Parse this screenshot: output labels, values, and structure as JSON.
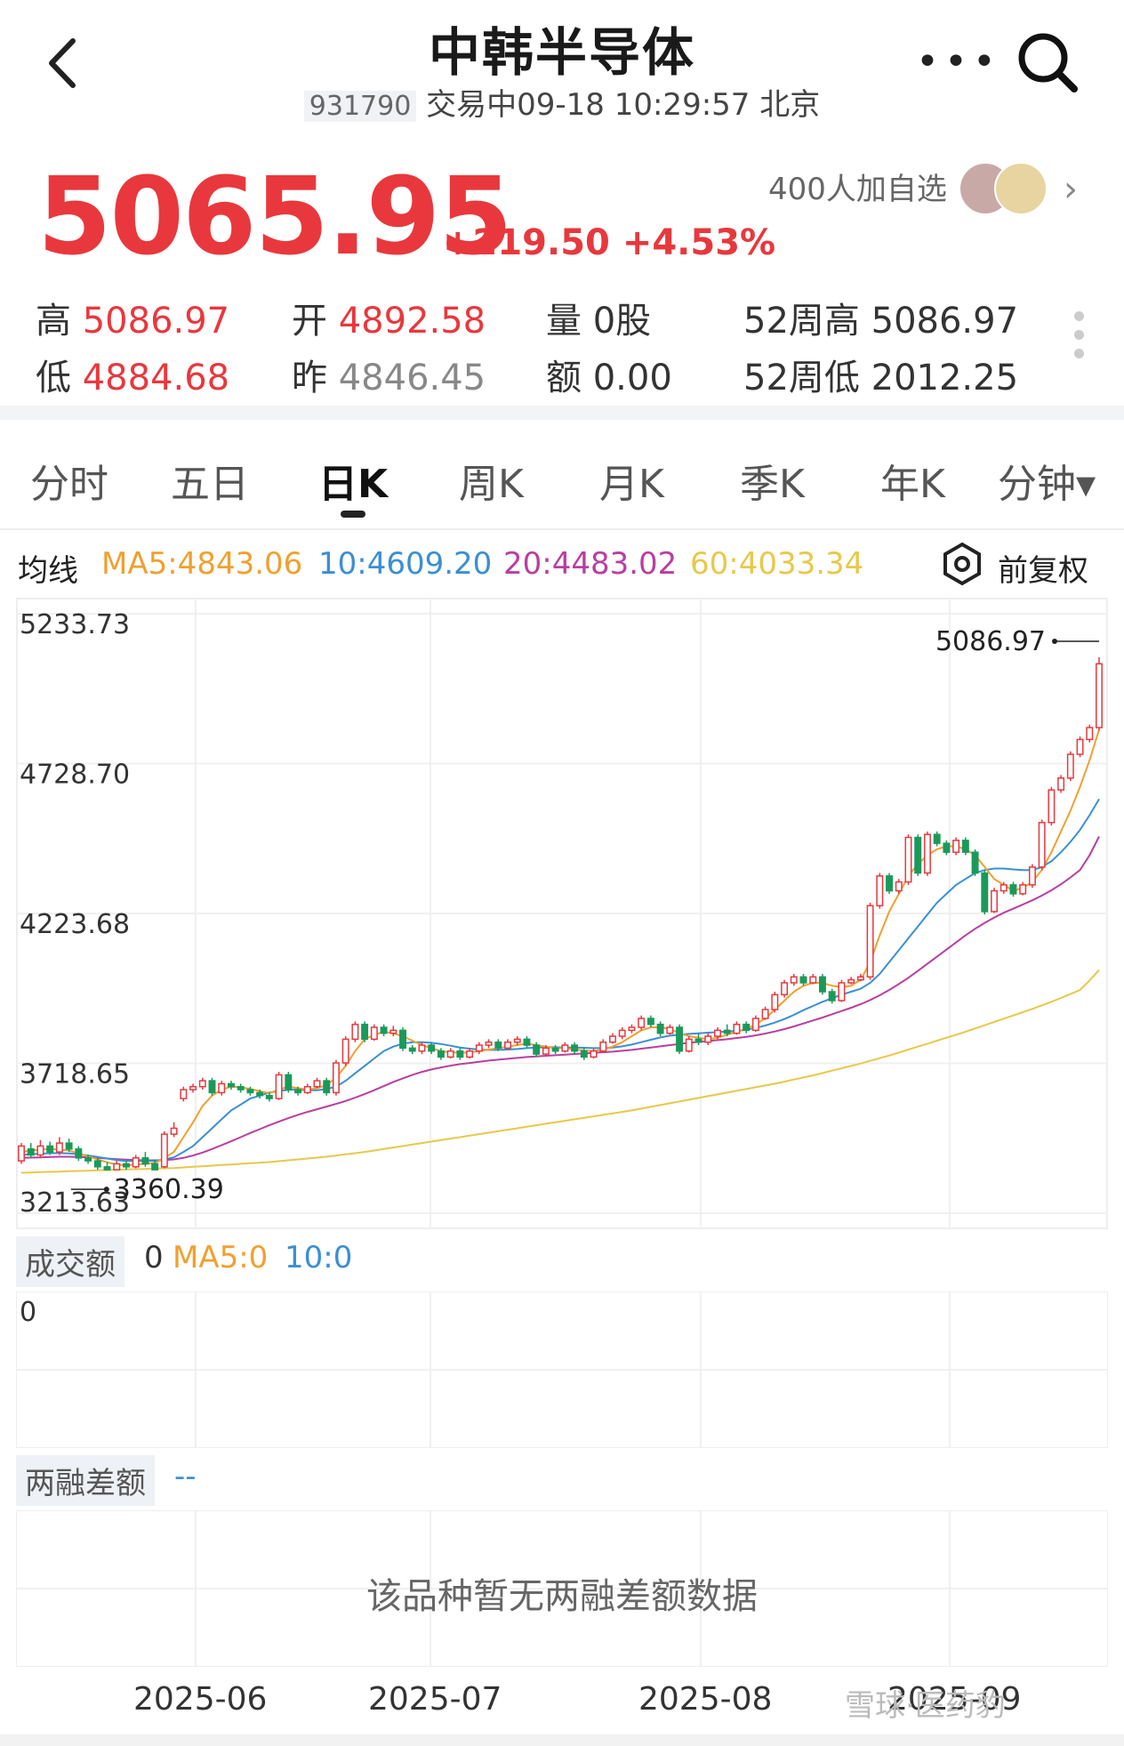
{
  "header": {
    "title": "中韩半导体",
    "code": "931790",
    "status": "交易中09-18 10:29:57 北京"
  },
  "quote": {
    "price": "5065.95",
    "change": "+219.50",
    "change_pct": "+4.53%",
    "watch_count": "400人加自选",
    "high_label": "高",
    "high": "5086.97",
    "low_label": "低",
    "low": "4884.68",
    "open_label": "开",
    "open": "4892.58",
    "prev_label": "昨",
    "prev": "4846.45",
    "vol_label": "量",
    "vol": "0股",
    "amt_label": "额",
    "amt": "0.00",
    "w52h_label": "52周高",
    "w52h": "5086.97",
    "w52l_label": "52周低",
    "w52l": "2012.25"
  },
  "tabs": [
    "分时",
    "五日",
    "日K",
    "周K",
    "月K",
    "季K",
    "年K",
    "分钟▾"
  ],
  "active_tab": "日K",
  "ma": {
    "label": "均线",
    "ma5": "MA5:4843.06",
    "ma10": "10:4609.20",
    "ma20": "20:4483.02",
    "ma60": "60:4033.34",
    "adj": "前复权",
    "colors": {
      "ma5": "#f0a030",
      "ma10": "#3b8fd4",
      "ma20": "#b83fa0",
      "ma60": "#e8c84a",
      "up": "#e8383d",
      "down": "#1a9a5a"
    }
  },
  "chart_data": {
    "type": "candlestick",
    "y_ticks": [
      "5233.73",
      "4728.70",
      "4223.68",
      "3718.65",
      "3213.63"
    ],
    "ylim": [
      3213.63,
      5233.73
    ],
    "x_ticks": [
      "2025-06",
      "2025-07",
      "2025-08",
      "2025-09"
    ],
    "max_label": "5086.97",
    "min_label": "3360.39",
    "candles": [
      [
        3390,
        3440,
        3380,
        3450
      ],
      [
        3430,
        3410,
        3400,
        3450
      ],
      [
        3410,
        3440,
        3400,
        3460
      ],
      [
        3440,
        3420,
        3410,
        3455
      ],
      [
        3420,
        3450,
        3410,
        3470
      ],
      [
        3450,
        3430,
        3420,
        3465
      ],
      [
        3430,
        3400,
        3390,
        3440
      ],
      [
        3400,
        3390,
        3380,
        3410
      ],
      [
        3390,
        3370,
        3360,
        3400
      ],
      [
        3370,
        3360,
        3360,
        3385
      ],
      [
        3360,
        3380,
        3360,
        3390
      ],
      [
        3380,
        3370,
        3360,
        3390
      ],
      [
        3370,
        3400,
        3365,
        3410
      ],
      [
        3400,
        3380,
        3370,
        3420
      ],
      [
        3380,
        3360,
        3360,
        3395
      ],
      [
        3370,
        3480,
        3365,
        3490
      ],
      [
        3480,
        3500,
        3470,
        3520
      ],
      [
        3600,
        3630,
        3590,
        3640
      ],
      [
        3630,
        3640,
        3620,
        3650
      ],
      [
        3640,
        3660,
        3630,
        3670
      ],
      [
        3660,
        3620,
        3610,
        3670
      ],
      [
        3620,
        3650,
        3610,
        3660
      ],
      [
        3650,
        3640,
        3630,
        3660
      ],
      [
        3640,
        3630,
        3620,
        3650
      ],
      [
        3630,
        3620,
        3610,
        3640
      ],
      [
        3620,
        3610,
        3600,
        3630
      ],
      [
        3610,
        3600,
        3590,
        3620
      ],
      [
        3600,
        3680,
        3595,
        3690
      ],
      [
        3680,
        3630,
        3620,
        3690
      ],
      [
        3630,
        3620,
        3610,
        3640
      ],
      [
        3620,
        3640,
        3615,
        3650
      ],
      [
        3640,
        3660,
        3635,
        3670
      ],
      [
        3660,
        3620,
        3610,
        3670
      ],
      [
        3620,
        3720,
        3610,
        3730
      ],
      [
        3720,
        3800,
        3710,
        3810
      ],
      [
        3800,
        3850,
        3790,
        3860
      ],
      [
        3850,
        3800,
        3790,
        3860
      ],
      [
        3800,
        3840,
        3795,
        3850
      ],
      [
        3840,
        3820,
        3810,
        3850
      ],
      [
        3820,
        3830,
        3810,
        3845
      ],
      [
        3830,
        3770,
        3760,
        3840
      ],
      [
        3770,
        3760,
        3750,
        3780
      ],
      [
        3760,
        3780,
        3750,
        3790
      ],
      [
        3780,
        3760,
        3750,
        3790
      ],
      [
        3760,
        3740,
        3730,
        3770
      ],
      [
        3740,
        3760,
        3735,
        3770
      ],
      [
        3760,
        3740,
        3730,
        3770
      ],
      [
        3740,
        3760,
        3735,
        3770
      ],
      [
        3760,
        3780,
        3750,
        3790
      ],
      [
        3780,
        3790,
        3770,
        3800
      ],
      [
        3790,
        3770,
        3760,
        3800
      ],
      [
        3770,
        3790,
        3765,
        3800
      ],
      [
        3790,
        3800,
        3780,
        3810
      ],
      [
        3800,
        3780,
        3770,
        3810
      ],
      [
        3780,
        3750,
        3740,
        3790
      ],
      [
        3750,
        3770,
        3745,
        3780
      ],
      [
        3770,
        3760,
        3750,
        3780
      ],
      [
        3760,
        3780,
        3755,
        3790
      ],
      [
        3780,
        3760,
        3750,
        3790
      ],
      [
        3760,
        3740,
        3730,
        3770
      ],
      [
        3740,
        3760,
        3735,
        3770
      ],
      [
        3760,
        3790,
        3755,
        3800
      ],
      [
        3790,
        3810,
        3785,
        3820
      ],
      [
        3810,
        3830,
        3800,
        3840
      ],
      [
        3830,
        3840,
        3820,
        3850
      ],
      [
        3840,
        3870,
        3830,
        3880
      ],
      [
        3870,
        3850,
        3840,
        3880
      ],
      [
        3850,
        3820,
        3810,
        3860
      ],
      [
        3820,
        3840,
        3815,
        3850
      ],
      [
        3840,
        3760,
        3750,
        3850
      ],
      [
        3760,
        3800,
        3755,
        3810
      ],
      [
        3800,
        3790,
        3780,
        3820
      ],
      [
        3790,
        3810,
        3780,
        3820
      ],
      [
        3810,
        3830,
        3800,
        3840
      ],
      [
        3830,
        3820,
        3810,
        3850
      ],
      [
        3820,
        3850,
        3815,
        3860
      ],
      [
        3850,
        3830,
        3820,
        3860
      ],
      [
        3830,
        3870,
        3825,
        3880
      ],
      [
        3870,
        3900,
        3865,
        3910
      ],
      [
        3900,
        3950,
        3890,
        3960
      ],
      [
        3950,
        3990,
        3940,
        4000
      ],
      [
        3990,
        4010,
        3980,
        4020
      ],
      [
        4010,
        3990,
        3980,
        4020
      ],
      [
        3990,
        4010,
        3985,
        4020
      ],
      [
        4010,
        3960,
        3950,
        4020
      ],
      [
        3960,
        3930,
        3920,
        3970
      ],
      [
        3930,
        3990,
        3925,
        4000
      ],
      [
        3990,
        4000,
        3985,
        4010
      ],
      [
        4000,
        4010,
        3995,
        4020
      ],
      [
        4010,
        4250,
        4000,
        4260
      ],
      [
        4250,
        4350,
        4240,
        4360
      ],
      [
        4350,
        4300,
        4290,
        4360
      ],
      [
        4300,
        4330,
        4290,
        4340
      ],
      [
        4330,
        4480,
        4320,
        4490
      ],
      [
        4480,
        4360,
        4350,
        4490
      ],
      [
        4360,
        4490,
        4350,
        4500
      ],
      [
        4490,
        4460,
        4450,
        4500
      ],
      [
        4460,
        4430,
        4420,
        4470
      ],
      [
        4430,
        4470,
        4420,
        4480
      ],
      [
        4470,
        4430,
        4420,
        4480
      ],
      [
        4430,
        4360,
        4350,
        4440
      ],
      [
        4360,
        4230,
        4220,
        4370
      ],
      [
        4230,
        4300,
        4225,
        4310
      ],
      [
        4300,
        4320,
        4290,
        4330
      ],
      [
        4320,
        4290,
        4280,
        4330
      ],
      [
        4290,
        4320,
        4285,
        4330
      ],
      [
        4320,
        4380,
        4310,
        4390
      ],
      [
        4380,
        4530,
        4370,
        4540
      ],
      [
        4530,
        4640,
        4520,
        4650
      ],
      [
        4640,
        4680,
        4630,
        4690
      ],
      [
        4680,
        4760,
        4670,
        4770
      ],
      [
        4760,
        4810,
        4750,
        4820
      ],
      [
        4810,
        4850,
        4800,
        4860
      ],
      [
        4850,
        5065,
        4840,
        5087
      ]
    ],
    "ma5": [
      3420,
      3425,
      3428,
      3430,
      3428,
      3425,
      3415,
      3405,
      3395,
      3385,
      3378,
      3375,
      3378,
      3380,
      3382,
      3400,
      3420,
      3470,
      3520,
      3575,
      3610,
      3630,
      3640,
      3638,
      3632,
      3625,
      3618,
      3630,
      3640,
      3635,
      3630,
      3635,
      3645,
      3670,
      3710,
      3760,
      3800,
      3815,
      3825,
      3820,
      3810,
      3795,
      3780,
      3770,
      3760,
      3755,
      3755,
      3755,
      3760,
      3765,
      3770,
      3775,
      3780,
      3785,
      3780,
      3775,
      3770,
      3770,
      3765,
      3762,
      3760,
      3765,
      3775,
      3790,
      3810,
      3830,
      3840,
      3840,
      3835,
      3820,
      3810,
      3805,
      3800,
      3805,
      3815,
      3825,
      3835,
      3850,
      3870,
      3900,
      3930,
      3960,
      3980,
      3990,
      3990,
      3980,
      3975,
      3980,
      4000,
      4060,
      4150,
      4230,
      4290,
      4350,
      4390,
      4420,
      4440,
      4450,
      4450,
      4440,
      4420,
      4380,
      4340,
      4320,
      4300,
      4310,
      4330,
      4370,
      4430,
      4500,
      4570,
      4650,
      4740,
      4843
    ],
    "ma10": [
      3410,
      3412,
      3414,
      3416,
      3416,
      3415,
      3412,
      3408,
      3403,
      3398,
      3393,
      3390,
      3390,
      3390,
      3390,
      3395,
      3402,
      3420,
      3440,
      3470,
      3500,
      3530,
      3560,
      3580,
      3600,
      3610,
      3620,
      3625,
      3630,
      3630,
      3628,
      3628,
      3632,
      3640,
      3660,
      3685,
      3710,
      3735,
      3760,
      3775,
      3785,
      3790,
      3790,
      3788,
      3784,
      3778,
      3772,
      3768,
      3765,
      3764,
      3764,
      3765,
      3767,
      3770,
      3772,
      3773,
      3773,
      3772,
      3772,
      3771,
      3770,
      3770,
      3772,
      3776,
      3782,
      3790,
      3798,
      3806,
      3812,
      3815,
      3818,
      3820,
      3822,
      3824,
      3826,
      3828,
      3832,
      3838,
      3846,
      3856,
      3868,
      3882,
      3898,
      3912,
      3926,
      3938,
      3950,
      3960,
      3970,
      3990,
      4020,
      4060,
      4100,
      4140,
      4180,
      4220,
      4260,
      4290,
      4320,
      4340,
      4360,
      4370,
      4375,
      4375,
      4372,
      4370,
      4370,
      4380,
      4400,
      4430,
      4465,
      4505,
      4555,
      4609
    ],
    "ma20": [
      3400,
      3401,
      3402,
      3403,
      3404,
      3404,
      3403,
      3402,
      3400,
      3398,
      3396,
      3394,
      3393,
      3392,
      3392,
      3393,
      3395,
      3400,
      3408,
      3418,
      3430,
      3443,
      3456,
      3470,
      3484,
      3497,
      3510,
      3522,
      3534,
      3545,
      3555,
      3564,
      3573,
      3582,
      3592,
      3603,
      3615,
      3628,
      3642,
      3656,
      3668,
      3680,
      3690,
      3698,
      3705,
      3711,
      3716,
      3720,
      3724,
      3728,
      3731,
      3734,
      3737,
      3740,
      3742,
      3744,
      3746,
      3748,
      3750,
      3752,
      3754,
      3756,
      3758,
      3761,
      3764,
      3768,
      3772,
      3776,
      3780,
      3784,
      3788,
      3791,
      3794,
      3797,
      3800,
      3804,
      3808,
      3813,
      3819,
      3826,
      3834,
      3843,
      3853,
      3863,
      3873,
      3884,
      3895,
      3906,
      3918,
      3932,
      3948,
      3966,
      3986,
      4007,
      4030,
      4054,
      4078,
      4102,
      4126,
      4150,
      4172,
      4192,
      4210,
      4226,
      4240,
      4254,
      4268,
      4284,
      4302,
      4322,
      4345,
      4370,
      4420,
      4483
    ],
    "ma60": [
      3350,
      3351,
      3352,
      3353,
      3354,
      3355,
      3356,
      3357,
      3358,
      3359,
      3360,
      3361,
      3362,
      3363,
      3364,
      3365,
      3366,
      3368,
      3370,
      3372,
      3374,
      3376,
      3378,
      3380,
      3382,
      3384,
      3386,
      3389,
      3392,
      3395,
      3398,
      3401,
      3404,
      3408,
      3412,
      3416,
      3420,
      3425,
      3430,
      3435,
      3440,
      3445,
      3450,
      3455,
      3460,
      3465,
      3470,
      3475,
      3480,
      3485,
      3490,
      3495,
      3500,
      3505,
      3510,
      3515,
      3520,
      3525,
      3530,
      3535,
      3540,
      3545,
      3550,
      3555,
      3560,
      3566,
      3572,
      3578,
      3584,
      3590,
      3596,
      3602,
      3608,
      3614,
      3620,
      3626,
      3632,
      3638,
      3644,
      3650,
      3657,
      3664,
      3671,
      3678,
      3686,
      3694,
      3702,
      3710,
      3718,
      3727,
      3736,
      3745,
      3755,
      3765,
      3775,
      3785,
      3795,
      3805,
      3815,
      3825,
      3836,
      3847,
      3858,
      3869,
      3880,
      3891,
      3902,
      3914,
      3926,
      3939,
      3952,
      3966,
      3998,
      4033
    ]
  },
  "volume": {
    "tag": "成交额",
    "val": "0",
    "ma5": "MA5:0",
    "ma10": "10:0",
    "axis0": "0"
  },
  "margin": {
    "tag": "两融差额",
    "val": "--",
    "nodata": "该品种暂无两融差额数据"
  },
  "watermark": "雪球·医药豹"
}
